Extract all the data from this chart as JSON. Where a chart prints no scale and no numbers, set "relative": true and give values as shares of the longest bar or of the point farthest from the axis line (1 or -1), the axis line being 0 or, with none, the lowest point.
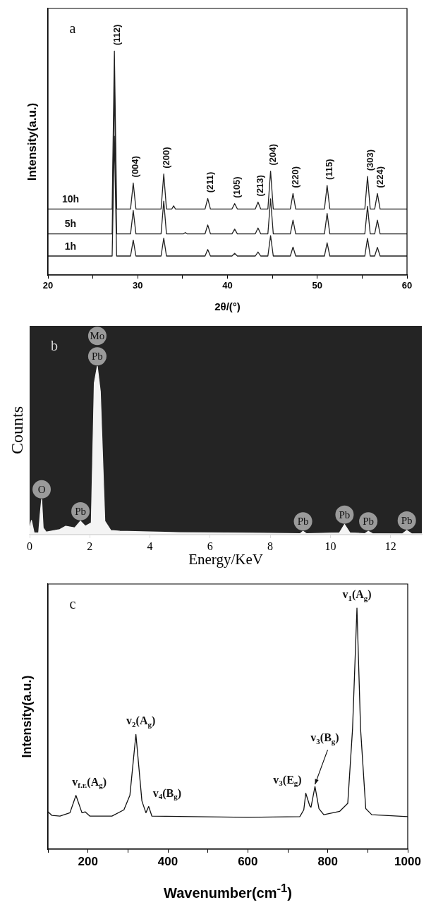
{
  "chart_data": [
    {
      "type": "line",
      "relative": true,
      "marker": "none",
      "legend": false,
      "xlabel": "2θ/(°)",
      "ylabel": "Intensity(a.u.)",
      "xlim": [
        20,
        60
      ],
      "xticks": [
        20,
        {
          "value": 25,
          "label": null
        },
        30,
        {
          "value": 35,
          "label": null
        },
        40,
        {
          "value": 45,
          "label": null
        },
        50,
        {
          "value": 55,
          "label": null
        },
        60
      ],
      "x": [
        20,
        27.15,
        27.4,
        27.65,
        29.2,
        29.5,
        29.8,
        32.6,
        32.9,
        33.2,
        33.8,
        34.0,
        34.2,
        35.1,
        35.3,
        35.5,
        37.5,
        37.8,
        38.1,
        40.5,
        40.8,
        41.1,
        43.1,
        43.4,
        43.7,
        44.5,
        44.8,
        45.1,
        47.0,
        47.3,
        47.6,
        50.8,
        51.1,
        51.4,
        55.3,
        55.6,
        55.9,
        56.4,
        56.7,
        57.0,
        60
      ],
      "series": [
        {
          "name": "10h",
          "color": "#222222",
          "values": [
            0.295,
            0.295,
            1.0,
            0.295,
            0.295,
            0.411,
            0.295,
            0.295,
            0.451,
            0.295,
            0.295,
            0.309,
            0.295,
            0.295,
            0.295,
            0.295,
            0.295,
            0.342,
            0.295,
            0.295,
            0.319,
            0.295,
            0.295,
            0.326,
            0.295,
            0.295,
            0.464,
            0.295,
            0.295,
            0.364,
            0.295,
            0.295,
            0.4,
            0.295,
            0.295,
            0.44,
            0.295,
            0.295,
            0.364,
            0.295,
            0.295
          ]
        },
        {
          "name": "5h",
          "color": "#222222",
          "values": [
            0.184,
            0.184,
            0.85,
            0.184,
            0.184,
            0.288,
            0.184,
            0.184,
            0.33,
            0.184,
            0.184,
            0.184,
            0.184,
            0.184,
            0.19,
            0.184,
            0.184,
            0.224,
            0.184,
            0.184,
            0.205,
            0.184,
            0.184,
            0.21,
            0.184,
            0.184,
            0.34,
            0.184,
            0.184,
            0.245,
            0.184,
            0.184,
            0.275,
            0.184,
            0.184,
            0.307,
            0.184,
            0.184,
            0.245,
            0.184,
            0.184
          ]
        },
        {
          "name": "1h",
          "color": "#222222",
          "values": [
            0.085,
            0.085,
            0.62,
            0.085,
            0.085,
            0.156,
            0.085,
            0.085,
            0.165,
            0.085,
            0.085,
            0.085,
            0.085,
            0.085,
            0.085,
            0.085,
            0.085,
            0.114,
            0.085,
            0.085,
            0.097,
            0.085,
            0.085,
            0.103,
            0.085,
            0.085,
            0.176,
            0.085,
            0.085,
            0.125,
            0.085,
            0.085,
            0.144,
            0.085,
            0.085,
            0.164,
            0.085,
            0.085,
            0.124,
            0.085,
            0.085
          ]
        }
      ],
      "annotations": [
        "a",
        {
          "text": "(112)",
          "x": 27.4,
          "y": 1.0
        },
        {
          "text": "(004)",
          "x": 29.5,
          "y": 0.411
        },
        {
          "text": "(200)",
          "x": 32.9,
          "y": 0.451
        },
        {
          "text": "(211)",
          "x": 37.8,
          "y": 0.342
        },
        {
          "text": "(105)",
          "x": 40.8,
          "y": 0.319
        },
        {
          "text": "(213)",
          "x": 43.4,
          "y": 0.326
        },
        {
          "text": "(204)",
          "x": 44.8,
          "y": 0.464
        },
        {
          "text": "(220)",
          "x": 47.3,
          "y": 0.364
        },
        {
          "text": "(115)",
          "x": 51.1,
          "y": 0.4
        },
        {
          "text": "(303)",
          "x": 55.6,
          "y": 0.44
        },
        {
          "text": "(224)",
          "x": 56.7,
          "y": 0.364
        }
      ]
    },
    {
      "type": "area",
      "relative": true,
      "marker": "none",
      "legend": false,
      "xlabel": "Energy/KeV",
      "ylabel": "Counts",
      "xlim": [
        0,
        13.04
      ],
      "xticks": [
        0,
        2,
        4,
        6,
        8,
        10,
        12
      ],
      "x": [
        0,
        0.06,
        0.15,
        0.3,
        0.35,
        0.4,
        0.45,
        0.55,
        1.0,
        1.2,
        1.5,
        1.69,
        1.85,
        2.05,
        2.15,
        2.25,
        2.35,
        2.5,
        2.7,
        3.0,
        5.0,
        8.0,
        9.0,
        9.09,
        9.2,
        10.3,
        10.47,
        10.65,
        11.15,
        11.26,
        11.4,
        12.4,
        12.54,
        12.7,
        13.04
      ],
      "series": [
        {
          "color": "#f4f4f4",
          "values": [
            0.035,
            0.084,
            0.01,
            0.01,
            0.12,
            0.21,
            0.04,
            0.015,
            0.03,
            0.05,
            0.04,
            0.08,
            0.05,
            0.07,
            0.9,
            1.0,
            0.85,
            0.08,
            0.025,
            0.02,
            0.012,
            0.008,
            0.006,
            0.02,
            0.006,
            0.01,
            0.06,
            0.01,
            0.006,
            0.02,
            0.006,
            0.005,
            0.025,
            0.005,
            0.005
          ]
        }
      ],
      "annotations": [
        "b",
        {
          "text": "Pb",
          "x": 2.25,
          "y": 1.0
        },
        {
          "text": "Mo",
          "x": 2.25,
          "y": 1.0
        },
        {
          "text": "O",
          "x": 0.4,
          "y": 0.21
        },
        {
          "text": "Pb",
          "x": 1.69,
          "y": 0.08
        },
        {
          "text": "Pb",
          "x": 9.09,
          "y": 0.02
        },
        {
          "text": "Pb",
          "x": 10.47,
          "y": 0.06
        },
        {
          "text": "Pb",
          "x": 11.26,
          "y": 0.02
        },
        {
          "text": "Pb",
          "x": 12.54,
          "y": 0.025
        }
      ]
    },
    {
      "type": "line",
      "relative": true,
      "marker": "none",
      "legend": false,
      "xlabel": "Wavenumber(cm$^{-1}$)",
      "ylabel": "Intensity(a.u.)",
      "xlim": [
        100,
        1000
      ],
      "xticks": [
        {
          "value": 100,
          "label": null
        },
        200,
        {
          "value": 300,
          "label": null
        },
        400,
        {
          "value": 500,
          "label": null
        },
        600,
        {
          "value": 700,
          "label": null
        },
        800,
        {
          "value": 900,
          "label": null
        },
        1000
      ],
      "x": [
        100,
        110,
        130,
        155,
        170,
        185,
        193,
        205,
        260,
        290,
        305,
        320,
        335,
        345,
        352,
        360,
        600,
        730,
        740,
        745,
        755,
        758,
        768,
        778,
        790,
        830,
        850,
        862,
        873,
        882,
        895,
        910,
        1000
      ],
      "series": [
        {
          "color": "#111111",
          "values": [
            0.155,
            0.14,
            0.137,
            0.151,
            0.223,
            0.151,
            0.155,
            0.137,
            0.137,
            0.163,
            0.224,
            0.476,
            0.2,
            0.151,
            0.177,
            0.137,
            0.132,
            0.135,
            0.163,
            0.232,
            0.179,
            0.174,
            0.26,
            0.168,
            0.143,
            0.157,
            0.19,
            0.5,
            1.0,
            0.5,
            0.168,
            0.143,
            0.135
          ]
        }
      ],
      "annotations": [
        "c",
        {
          "text": "v$_{f.r.}$(A$_{g}$)",
          "x": 170,
          "y": 0.223
        },
        {
          "text": "v$_{2}$(A$_{g}$)",
          "x": 320,
          "y": 0.476
        },
        {
          "text": "v$_{4}$(B$_{g}$)",
          "x": 352,
          "y": 0.177
        },
        {
          "text": "v$_{3}$(E$_{g}$)",
          "x": 745,
          "y": 0.232
        },
        {
          "text": "v$_{3}$(B$_{g}$)",
          "x": 768,
          "y": 0.26
        },
        {
          "text": "v$_{1}$(A$_{g}$)",
          "x": 873,
          "y": 1.0
        }
      ]
    }
  ]
}
